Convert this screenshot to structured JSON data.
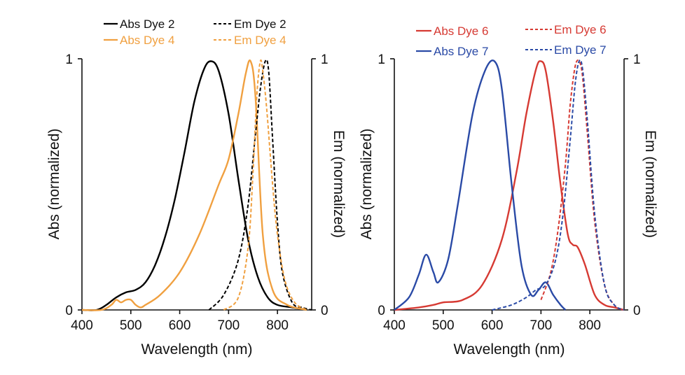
{
  "chart_data": [
    {
      "type": "line",
      "xlabel": "Wavelength (nm)",
      "ylabel_left": "Abs (normalized)",
      "ylabel_right": "Em (normalized)",
      "xlim": [
        400,
        870
      ],
      "ylim": [
        0,
        1
      ],
      "xticks": [
        "400",
        "500",
        "600",
        "700",
        "800"
      ],
      "yticks_left": [
        "0",
        "1"
      ],
      "yticks_right": [
        "0",
        "1"
      ],
      "series": [
        {
          "name": "Abs Dye 2",
          "color": "#000000",
          "dash": "solid",
          "x": [
            400,
            430,
            450,
            470,
            490,
            510,
            530,
            550,
            570,
            590,
            610,
            630,
            650,
            665,
            680,
            700,
            720,
            740,
            760,
            780,
            800,
            830,
            860
          ],
          "y": [
            0.0,
            0.0,
            0.02,
            0.05,
            0.07,
            0.08,
            0.11,
            0.18,
            0.29,
            0.44,
            0.63,
            0.83,
            0.96,
            0.99,
            0.95,
            0.78,
            0.52,
            0.28,
            0.13,
            0.05,
            0.02,
            0.01,
            0.0
          ]
        },
        {
          "name": "Abs Dye 4",
          "color": "#f0a040",
          "dash": "solid",
          "x": [
            400,
            440,
            460,
            470,
            480,
            490,
            500,
            510,
            520,
            530,
            560,
            600,
            640,
            680,
            700,
            720,
            735,
            745,
            755,
            770,
            790,
            820,
            860
          ],
          "y": [
            0.0,
            0.0,
            0.02,
            0.04,
            0.03,
            0.04,
            0.04,
            0.02,
            0.01,
            0.02,
            0.06,
            0.15,
            0.3,
            0.5,
            0.6,
            0.78,
            0.94,
            0.99,
            0.85,
            0.3,
            0.08,
            0.02,
            0.0
          ]
        },
        {
          "name": "Em Dye 2",
          "color": "#000000",
          "dash": "dashed",
          "x": [
            660,
            690,
            720,
            740,
            755,
            765,
            775,
            782,
            790,
            800,
            810,
            830,
            850,
            870
          ],
          "y": [
            0.0,
            0.06,
            0.2,
            0.42,
            0.7,
            0.88,
            0.99,
            0.95,
            0.68,
            0.35,
            0.15,
            0.03,
            0.01,
            0.0
          ]
        },
        {
          "name": "Em Dye 4",
          "color": "#f0a040",
          "dash": "dashed",
          "x": [
            690,
            720,
            740,
            750,
            758,
            765,
            770,
            778,
            790,
            800,
            815,
            835,
            860
          ],
          "y": [
            0.0,
            0.05,
            0.25,
            0.55,
            0.86,
            0.99,
            0.95,
            0.8,
            0.5,
            0.3,
            0.12,
            0.03,
            0.0
          ]
        }
      ]
    },
    {
      "type": "line",
      "xlabel": "Wavelength (nm)",
      "ylabel_left": "Abs (normalized)",
      "ylabel_right": "Em (normalized)",
      "xlim": [
        400,
        870
      ],
      "ylim": [
        0,
        1
      ],
      "xticks": [
        "400",
        "500",
        "600",
        "700",
        "800"
      ],
      "yticks_left": [
        "0",
        "1"
      ],
      "yticks_right": [
        "0",
        "1"
      ],
      "series": [
        {
          "name": "Abs Dye 6",
          "color": "#d63a33",
          "dash": "solid",
          "x": [
            400,
            450,
            480,
            500,
            540,
            580,
            620,
            650,
            670,
            690,
            700,
            710,
            725,
            740,
            755,
            765,
            775,
            790,
            810,
            830,
            850,
            870
          ],
          "y": [
            0.0,
            0.01,
            0.02,
            0.03,
            0.04,
            0.1,
            0.28,
            0.55,
            0.78,
            0.96,
            0.99,
            0.95,
            0.75,
            0.5,
            0.3,
            0.26,
            0.25,
            0.18,
            0.06,
            0.02,
            0.01,
            0.0
          ]
        },
        {
          "name": "Abs Dye 7",
          "color": "#2a4aa6",
          "dash": "solid",
          "x": [
            400,
            430,
            450,
            465,
            480,
            490,
            510,
            530,
            560,
            585,
            605,
            620,
            640,
            660,
            680,
            695,
            710,
            725,
            740,
            750
          ],
          "y": [
            0.0,
            0.05,
            0.14,
            0.22,
            0.15,
            0.11,
            0.2,
            0.42,
            0.78,
            0.95,
            0.99,
            0.88,
            0.5,
            0.18,
            0.06,
            0.08,
            0.11,
            0.06,
            0.02,
            0.0
          ]
        },
        {
          "name": "Em Dye 6",
          "color": "#d63a33",
          "dash": "dashed",
          "x": [
            700,
            720,
            735,
            750,
            760,
            770,
            778,
            785,
            795,
            810,
            830,
            850,
            870
          ],
          "y": [
            0.04,
            0.15,
            0.32,
            0.58,
            0.82,
            0.97,
            0.99,
            0.93,
            0.7,
            0.35,
            0.1,
            0.02,
            0.0
          ]
        },
        {
          "name": "Em Dye 7",
          "color": "#2a4aa6",
          "dash": "dashed",
          "x": [
            600,
            640,
            670,
            690,
            710,
            730,
            745,
            760,
            770,
            778,
            785,
            795,
            810,
            830,
            850,
            870
          ],
          "y": [
            0.0,
            0.02,
            0.05,
            0.08,
            0.1,
            0.2,
            0.38,
            0.68,
            0.9,
            0.99,
            0.96,
            0.75,
            0.38,
            0.1,
            0.02,
            0.0
          ]
        }
      ]
    }
  ]
}
